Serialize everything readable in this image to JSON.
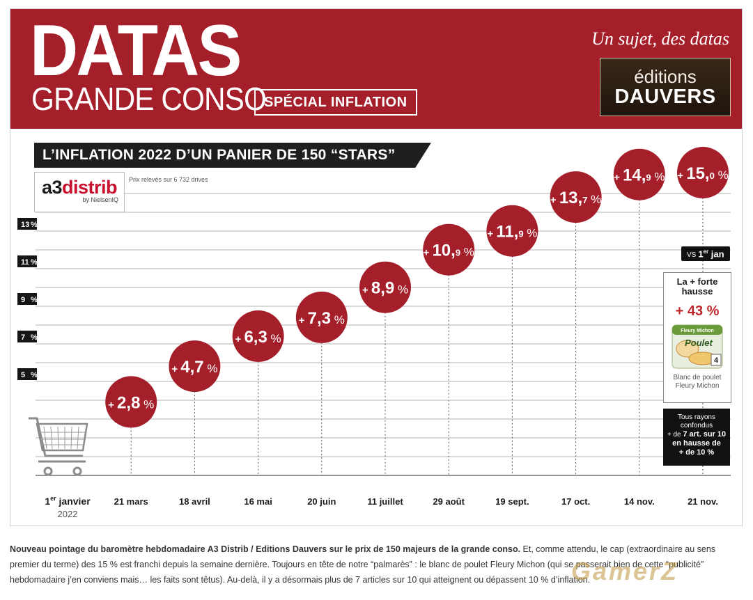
{
  "banner": {
    "title": "DATAS",
    "subtitle": "GRANDE CONSO",
    "special": "SPÉCIAL INFLATION",
    "tagline": "Un sujet, des datas",
    "publisher_top": "éditions",
    "publisher_bottom": "DAUVERS"
  },
  "colors": {
    "banner": "#a51f2b",
    "bubble": "#a51f2b",
    "ribbon": "#1f1f1f",
    "accent_red": "#c0272d"
  },
  "ribbon_title": "L’INFLATION 2022 D’UN PANIER DE 150 “STARS”",
  "logo": {
    "brand_a3": "a3",
    "brand_distrib": "distrib",
    "by": "by NielsenIQ"
  },
  "source": "Prix relevés sur 6 732 drives",
  "chart_data": {
    "type": "line",
    "title": "L’INFLATION 2022 D’UN PANIER DE 150 “STARS”",
    "categories": [
      "1er janvier 2022",
      "21 mars",
      "18 avril",
      "16 mai",
      "20 juin",
      "11 juillet",
      "29 août",
      "19 sept.",
      "17 oct.",
      "14 nov.",
      "21 nov."
    ],
    "x_labels": [
      {
        "main": "1",
        "sup": "er",
        "rest": " janvier",
        "sub": "2022"
      },
      {
        "main": "21 mars"
      },
      {
        "main": "18 avril"
      },
      {
        "main": "16 mai"
      },
      {
        "main": "20 juin"
      },
      {
        "main": "11 juillet"
      },
      {
        "main": "29 août"
      },
      {
        "main": "19 sept."
      },
      {
        "main": "17 oct."
      },
      {
        "main": "14 nov."
      },
      {
        "main": "21 nov."
      }
    ],
    "values": [
      0,
      2.8,
      4.7,
      6.3,
      7.3,
      8.9,
      10.9,
      11.9,
      13.7,
      14.9,
      15.0
    ],
    "labels": [
      "",
      "2,8",
      "4,7",
      "6,3",
      "7,3",
      "8,9",
      "10,9",
      "11,9",
      "13,7",
      "14,9",
      "15,0"
    ],
    "y_ticks": [
      5,
      7,
      9,
      11,
      13
    ],
    "ylim": [
      0,
      16
    ],
    "unit": "%",
    "grid": true
  },
  "vs_badge": {
    "prefix": "VS",
    "main": "1",
    "sup": "er",
    "rest": " jan"
  },
  "hausse_box": {
    "title_line1": "La + forte",
    "title_line2": "hausse",
    "value": "+ 43 %",
    "product_line1": "Blanc de poulet",
    "product_line2": "Fleury Michon",
    "pack_brand": "Fleury Michon",
    "pack_name": "Poulet",
    "pack_count": "4"
  },
  "rayons_box": {
    "line1": "Tous rayons",
    "line2": "confondus",
    "line3_prefix": "+ de ",
    "line3_bold": "7 art. sur 10",
    "line4": "en hausse de",
    "line5": "+ de 10 %"
  },
  "caption": {
    "bold": "Nouveau pointage du baromètre hebdomadaire A3 Distrib / Editions Dauvers sur le prix de 150 majeurs de la grande conso.",
    "rest": " Et, comme attendu, le cap (extraordinaire au sens premier du terme) des 15 % est franchi depuis la semaine dernière. Toujours en tête de notre “palmarès” : le blanc de poulet Fleury Michon (qui se passerait bien de cette “publicité” hebdomadaire j’en conviens mais… les faits sont têtus). Au-delà, il y a désormais plus de 7 articles sur 10 qui atteignent ou dépassent 10 % d’inflation."
  },
  "watermark": "GamerZ"
}
